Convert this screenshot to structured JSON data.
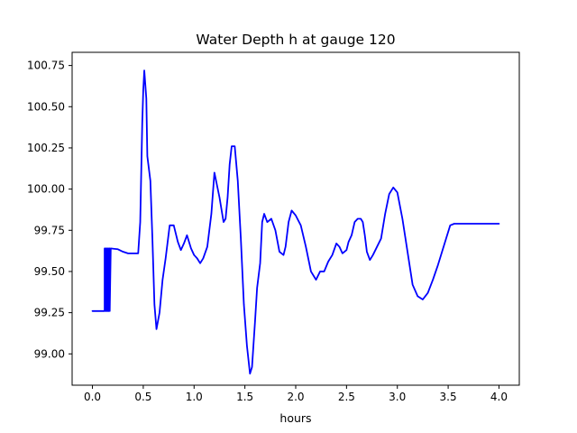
{
  "chart_data": {
    "type": "line",
    "title": "Water Depth h at gauge 120",
    "xlabel": "hours",
    "ylabel": "",
    "xlim": [
      -0.2,
      4.2
    ],
    "ylim": [
      98.81,
      100.83
    ],
    "xticks": [
      0.0,
      0.5,
      1.0,
      1.5,
      2.0,
      2.5,
      3.0,
      3.5,
      4.0
    ],
    "xtick_labels": [
      "0.0",
      "0.5",
      "1.0",
      "1.5",
      "2.0",
      "2.5",
      "3.0",
      "3.5",
      "4.0"
    ],
    "yticks": [
      99.0,
      99.25,
      99.5,
      99.75,
      100.0,
      100.25,
      100.5,
      100.75
    ],
    "ytick_labels": [
      "99.00",
      "99.25",
      "99.50",
      "99.75",
      "100.00",
      "100.25",
      "100.50",
      "100.75"
    ],
    "grid": false,
    "legend": "none",
    "color": "#0000ff",
    "series": [
      {
        "x": [
          0.0,
          0.12,
          0.12,
          0.13,
          0.13,
          0.14,
          0.14,
          0.15,
          0.15,
          0.16,
          0.16,
          0.17,
          0.17,
          0.18,
          0.25,
          0.3,
          0.35,
          0.4,
          0.45,
          0.47,
          0.49,
          0.5,
          0.51,
          0.53,
          0.54,
          0.55,
          0.57,
          0.59,
          0.61,
          0.63,
          0.66,
          0.69,
          0.72,
          0.76,
          0.8,
          0.84,
          0.87,
          0.9,
          0.93,
          0.97,
          1.0,
          1.03,
          1.06,
          1.09,
          1.13,
          1.17,
          1.2,
          1.25,
          1.29,
          1.31,
          1.33,
          1.35,
          1.37,
          1.4,
          1.43,
          1.46,
          1.49,
          1.52,
          1.55,
          1.57,
          1.6,
          1.62,
          1.65,
          1.67,
          1.69,
          1.72,
          1.76,
          1.8,
          1.84,
          1.88,
          1.9,
          1.93,
          1.96,
          2.0,
          2.05,
          2.1,
          2.15,
          2.2,
          2.24,
          2.28,
          2.32,
          2.36,
          2.4,
          2.43,
          2.46,
          2.5,
          2.52,
          2.55,
          2.58,
          2.61,
          2.64,
          2.66,
          2.68,
          2.7,
          2.73,
          2.76,
          2.8,
          2.84,
          2.88,
          2.92,
          2.96,
          3.0,
          3.05,
          3.1,
          3.15,
          3.2,
          3.25,
          3.3,
          3.35,
          3.4,
          3.44,
          3.48,
          3.52,
          3.56,
          3.6,
          3.65,
          3.69,
          3.73,
          3.78,
          3.83,
          3.88,
          3.93,
          3.97,
          4.0
        ],
        "y": [
          99.26,
          99.26,
          99.64,
          99.64,
          99.26,
          99.26,
          99.64,
          99.64,
          99.26,
          99.26,
          99.64,
          99.64,
          99.26,
          99.64,
          99.635,
          99.62,
          99.61,
          99.61,
          99.61,
          99.8,
          100.4,
          100.6,
          100.72,
          100.55,
          100.2,
          100.15,
          100.05,
          99.7,
          99.3,
          99.15,
          99.25,
          99.45,
          99.58,
          99.78,
          99.78,
          99.68,
          99.63,
          99.67,
          99.72,
          99.64,
          99.6,
          99.58,
          99.55,
          99.58,
          99.65,
          99.85,
          100.1,
          99.95,
          99.8,
          99.82,
          99.95,
          100.15,
          100.26,
          100.26,
          100.05,
          99.7,
          99.3,
          99.05,
          98.88,
          98.92,
          99.2,
          99.4,
          99.55,
          99.8,
          99.85,
          99.8,
          99.82,
          99.75,
          99.62,
          99.6,
          99.65,
          99.8,
          99.87,
          99.84,
          99.78,
          99.65,
          99.5,
          99.45,
          99.5,
          99.5,
          99.56,
          99.6,
          99.67,
          99.65,
          99.61,
          99.63,
          99.68,
          99.72,
          99.8,
          99.82,
          99.82,
          99.8,
          99.72,
          99.62,
          99.57,
          99.6,
          99.65,
          99.7,
          99.85,
          99.97,
          100.01,
          99.98,
          99.82,
          99.62,
          99.42,
          99.35,
          99.33,
          99.37,
          99.45,
          99.54,
          99.62,
          99.7,
          99.78,
          99.79,
          99.79,
          99.79,
          99.79,
          99.79,
          99.79,
          99.79,
          99.79,
          99.79,
          99.79,
          99.79
        ]
      }
    ]
  }
}
